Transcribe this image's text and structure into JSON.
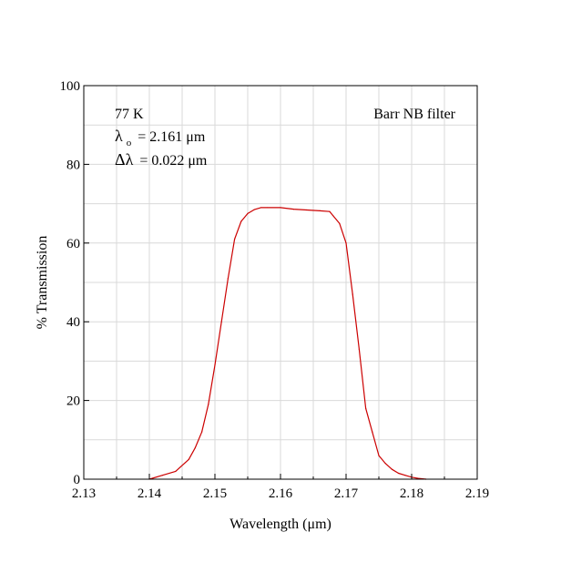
{
  "chart_data": {
    "type": "line",
    "title": "",
    "xlabel": "Wavelength (μm)",
    "ylabel": "% Transmission",
    "xlim": [
      2.13,
      2.19
    ],
    "ylim": [
      0,
      100
    ],
    "grid": true,
    "x_ticks": [
      "2.13",
      "2.14",
      "2.15",
      "2.16",
      "2.17",
      "2.18",
      "2.19"
    ],
    "y_ticks": [
      "0",
      "20",
      "40",
      "60",
      "80",
      "100"
    ],
    "annotations": {
      "temperature": "77 K",
      "center_symbol": "λ",
      "center_subscript": "o",
      "center_value": "= 2.161 μm",
      "width_symbol": "Δλ",
      "width_value": "= 0.022 μm",
      "filter_name": "Barr NB filter"
    },
    "series": [
      {
        "color": "#cc0000",
        "x": [
          2.14,
          2.142,
          2.144,
          2.146,
          2.147,
          2.148,
          2.149,
          2.15,
          2.151,
          2.152,
          2.153,
          2.154,
          2.155,
          2.156,
          2.157,
          2.158,
          2.16,
          2.162,
          2.164,
          2.166,
          2.1675,
          2.168,
          2.169,
          2.17,
          2.171,
          2.172,
          2.173,
          2.174,
          2.175,
          2.176,
          2.177,
          2.178,
          2.179,
          2.18,
          2.181,
          2.1822
        ],
        "y": [
          0,
          1,
          2,
          5,
          8,
          12,
          19,
          29,
          40,
          51,
          61,
          65.5,
          67.5,
          68.5,
          69,
          69,
          69,
          68.6,
          68.4,
          68.2,
          68,
          67,
          65,
          60,
          47,
          33,
          18,
          12,
          6,
          4,
          2.5,
          1.5,
          1,
          0.5,
          0.2,
          0
        ]
      }
    ]
  }
}
